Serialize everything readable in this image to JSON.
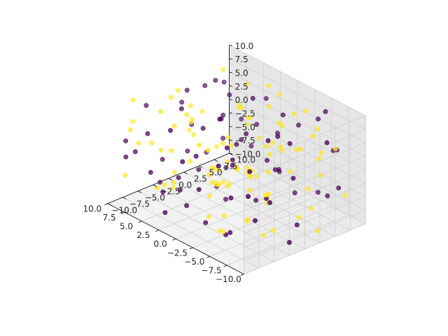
{
  "chart_data": {
    "type": "scatter",
    "projection": "3d",
    "title": "",
    "xlabel": "",
    "ylabel": "",
    "zlabel": "",
    "xlim": [
      -10,
      10
    ],
    "ylim": [
      -10,
      10
    ],
    "zlim": [
      -10,
      10
    ],
    "grid": true,
    "legend": "none",
    "tick_values": [
      -10,
      -7.5,
      -5,
      -2.5,
      0,
      2.5,
      5,
      7.5,
      10
    ],
    "x_ticks": [
      "−10.0",
      "−7.5",
      "−5.0",
      "−2.5",
      "0.0",
      "2.5",
      "5.0",
      "7.5",
      "10.0"
    ],
    "y_ticks": [
      "−10.0",
      "−7.5",
      "−5.0",
      "−2.5",
      "0.0",
      "2.5",
      "5.0",
      "7.5",
      "10.0"
    ],
    "z_ticks": [
      "−10.0",
      "−7.5",
      "−5.0",
      "−2.5",
      "0.0",
      "2.5",
      "5.0",
      "7.5",
      "10.0"
    ],
    "series": [
      {
        "color": "#440154",
        "points": [
          [
            -9.2,
            -8.4,
            3.1
          ],
          [
            -7.8,
            6.2,
            -4.5
          ],
          [
            -6.5,
            -2.1,
            8.7
          ],
          [
            -5.9,
            9.3,
            1.2
          ],
          [
            -4.4,
            -6.7,
            -7.9
          ],
          [
            -3.8,
            2.5,
            5.6
          ],
          [
            -2.6,
            -9.1,
            0.4
          ],
          [
            -1.9,
            4.8,
            -2.8
          ],
          [
            -0.7,
            -3.3,
            9.5
          ],
          [
            0.5,
            7.6,
            -6.1
          ],
          [
            1.3,
            -5.2,
            2.2
          ],
          [
            2.4,
            0.9,
            -9.3
          ],
          [
            3.1,
            -7.4,
            6.8
          ],
          [
            4.2,
            5.5,
            -1.6
          ],
          [
            5.0,
            -1.8,
            4.1
          ],
          [
            5.8,
            8.9,
            -5.4
          ],
          [
            6.7,
            -4.6,
            -8.2
          ],
          [
            7.5,
            3.2,
            7.3
          ],
          [
            8.4,
            -8.8,
            -0.9
          ],
          [
            9.3,
            1.4,
            3.9
          ],
          [
            -8.6,
            0.3,
            -6.6
          ],
          [
            -7.1,
            -5.8,
            5.1
          ],
          [
            -6.0,
            7.9,
            9.1
          ],
          [
            -4.9,
            -0.6,
            -3.7
          ],
          [
            -3.2,
            9.8,
            -8.5
          ],
          [
            -2.0,
            -2.9,
            2.6
          ],
          [
            -1.1,
            6.4,
            6.0
          ],
          [
            0.1,
            -8.1,
            -4.8
          ],
          [
            1.8,
            2.0,
            0.7
          ],
          [
            2.9,
            -6.3,
            -2.3
          ],
          [
            3.7,
            9.0,
            4.7
          ],
          [
            4.6,
            -3.9,
            8.2
          ],
          [
            5.4,
            4.3,
            -7.0
          ],
          [
            6.3,
            -9.6,
            1.8
          ],
          [
            7.2,
            0.0,
            -3.1
          ],
          [
            8.0,
            6.9,
            5.9
          ],
          [
            9.1,
            -2.4,
            -9.0
          ],
          [
            -9.7,
            4.0,
            7.6
          ],
          [
            -8.1,
            -3.6,
            -1.0
          ],
          [
            -6.8,
            1.7,
            0.2
          ],
          [
            -5.3,
            -8.9,
            6.4
          ],
          [
            -4.0,
            5.1,
            -5.9
          ],
          [
            -2.9,
            -4.3,
            -9.6
          ],
          [
            -1.5,
            8.5,
            3.4
          ],
          [
            -0.2,
            -0.9,
            -0.5
          ],
          [
            1.0,
            3.8,
            8.9
          ],
          [
            2.1,
            -9.4,
            -6.8
          ],
          [
            3.4,
            7.1,
            1.0
          ],
          [
            4.5,
            -1.2,
            -4.2
          ],
          [
            5.6,
            2.8,
            9.7
          ],
          [
            6.9,
            -6.9,
            3.5
          ],
          [
            7.8,
            9.5,
            -2.0
          ],
          [
            8.8,
            -5.0,
            6.6
          ],
          [
            9.6,
            5.8,
            -7.6
          ],
          [
            -9.0,
            -1.4,
            -8.8
          ],
          [
            -7.5,
            8.1,
            2.9
          ],
          [
            -5.6,
            -7.2,
            -0.1
          ],
          [
            -4.7,
            3.5,
            4.4
          ],
          [
            -3.5,
            -5.5,
            7.0
          ],
          [
            -2.3,
            0.6,
            -6.3
          ],
          [
            -0.9,
            -9.9,
            4.8
          ],
          [
            0.8,
            5.9,
            -3.4
          ],
          [
            2.6,
            -2.6,
            5.3
          ],
          [
            3.9,
            1.1,
            -8.0
          ],
          [
            5.2,
            -8.3,
            -1.9
          ],
          [
            6.1,
            4.6,
            2.1
          ],
          [
            7.0,
            -0.3,
            8.4
          ],
          [
            8.6,
            7.4,
            -5.1
          ],
          [
            9.4,
            -7.7,
            0.9
          ],
          [
            -8.9,
            6.8,
            -2.6
          ],
          [
            -6.3,
            -4.0,
            -5.3
          ],
          [
            -4.2,
            8.7,
            6.2
          ],
          [
            -1.7,
            -7.0,
            -7.3
          ],
          [
            0.3,
            1.9,
            3.7
          ],
          [
            2.2,
            9.2,
            -0.8
          ],
          [
            4.0,
            -4.8,
            -6.0
          ],
          [
            6.5,
            6.1,
            4.9
          ],
          [
            8.2,
            -3.0,
            -3.9
          ],
          [
            -3.0,
            3.0,
            -1.3
          ],
          [
            1.6,
            -1.0,
            6.9
          ]
        ]
      },
      {
        "color": "#fde725",
        "points": [
          [
            -9.5,
            2.9,
            5.0
          ],
          [
            -8.3,
            -7.6,
            -2.4
          ],
          [
            -7.2,
            5.3,
            7.9
          ],
          [
            -6.2,
            -1.0,
            -8.6
          ],
          [
            -5.1,
            8.2,
            0.8
          ],
          [
            -4.1,
            -4.5,
            3.3
          ],
          [
            -3.4,
            1.2,
            -6.4
          ],
          [
            -2.2,
            -8.6,
            8.1
          ],
          [
            -1.3,
            6.0,
            -0.3
          ],
          [
            -0.4,
            -2.7,
            4.5
          ],
          [
            0.7,
            9.6,
            -7.1
          ],
          [
            1.5,
            -6.0,
            1.5
          ],
          [
            2.7,
            3.4,
            6.3
          ],
          [
            3.5,
            -9.2,
            -3.2
          ],
          [
            4.4,
            0.5,
            -9.8
          ],
          [
            5.5,
            7.0,
            2.7
          ],
          [
            6.4,
            -3.6,
            9.0
          ],
          [
            7.3,
            4.9,
            -4.6
          ],
          [
            8.1,
            -8.0,
            5.5
          ],
          [
            9.0,
            2.3,
            -1.5
          ],
          [
            -9.1,
            -5.4,
            1.9
          ],
          [
            -7.9,
            9.0,
            -5.6
          ],
          [
            -6.6,
            -0.2,
            6.7
          ],
          [
            -5.5,
            -8.2,
            -3.0
          ],
          [
            -4.5,
            4.4,
            9.3
          ],
          [
            -3.6,
            -2.2,
            -7.7
          ],
          [
            -2.5,
            7.7,
            0.0
          ],
          [
            -1.6,
            -6.5,
            5.8
          ],
          [
            -0.5,
            2.6,
            -4.0
          ],
          [
            0.4,
            -4.1,
            -1.1
          ],
          [
            1.2,
            8.3,
            7.4
          ],
          [
            2.3,
            -0.7,
            -5.8
          ],
          [
            3.3,
            5.6,
            3.0
          ],
          [
            4.1,
            -7.9,
            9.9
          ],
          [
            5.1,
            1.6,
            -8.3
          ],
          [
            6.0,
            -5.7,
            0.5
          ],
          [
            6.8,
            9.4,
            5.2
          ],
          [
            7.7,
            -1.6,
            -6.7
          ],
          [
            8.7,
            4.1,
            1.3
          ],
          [
            9.5,
            -6.4,
            7.8
          ],
          [
            -8.7,
            3.6,
            -9.2
          ],
          [
            -7.4,
            -3.1,
            4.0
          ],
          [
            -6.4,
            6.6,
            -1.8
          ],
          [
            -5.2,
            -9.5,
            6.1
          ],
          [
            -4.3,
            0.2,
            -4.4
          ],
          [
            -3.3,
            8.8,
            2.4
          ],
          [
            -2.1,
            -5.1,
            -9.4
          ],
          [
            -1.0,
            4.2,
            8.5
          ],
          [
            0.0,
            -1.5,
            0.3
          ],
          [
            1.1,
            6.7,
            -2.9
          ],
          [
            2.0,
            -8.5,
            4.3
          ],
          [
            3.0,
            2.1,
            -7.4
          ],
          [
            4.3,
            -3.4,
            7.1
          ],
          [
            5.3,
            7.8,
            -0.6
          ],
          [
            6.2,
            -0.4,
            3.6
          ],
          [
            7.1,
            5.0,
            -8.9
          ],
          [
            8.3,
            -9.0,
            -4.1
          ],
          [
            9.2,
            0.7,
            6.5
          ],
          [
            -9.4,
            -6.1,
            -5.0
          ],
          [
            -8.0,
            7.3,
            3.8
          ],
          [
            -6.9,
            -2.5,
            -0.7
          ],
          [
            -5.8,
            1.0,
            9.6
          ],
          [
            -4.6,
            -7.3,
            -6.9
          ],
          [
            -3.7,
            5.7,
            1.6
          ],
          [
            -2.7,
            -0.8,
            -3.5
          ],
          [
            -1.4,
            9.7,
            5.4
          ],
          [
            -0.3,
            -4.9,
            -8.1
          ],
          [
            0.9,
            0.1,
            2.0
          ],
          [
            1.9,
            4.7,
            -5.5
          ],
          [
            2.8,
            -7.1,
            7.7
          ],
          [
            3.8,
            8.0,
            -2.2
          ],
          [
            4.9,
            -2.0,
            4.6
          ],
          [
            5.9,
            3.1,
            -9.5
          ],
          [
            6.6,
            -8.7,
            2.8
          ],
          [
            7.6,
            6.3,
            8.8
          ],
          [
            8.5,
            -4.4,
            -0.4
          ],
          [
            9.8,
            3.9,
            -3.6
          ],
          [
            -9.8,
            0.8,
            0.6
          ],
          [
            -8.4,
            -9.3,
            8.0
          ],
          [
            -7.0,
            2.4,
            -7.2
          ],
          [
            -5.7,
            -4.2,
            2.5
          ],
          [
            -4.8,
            6.9,
            -9.1
          ],
          [
            -3.9,
            -8.4,
            4.9
          ],
          [
            -2.8,
            3.9,
            6.8
          ],
          [
            -1.8,
            -3.5,
            -2.1
          ],
          [
            -0.6,
            5.2,
            1.1
          ],
          [
            0.6,
            -9.7,
            -0.2
          ],
          [
            1.7,
            7.2,
            9.2
          ],
          [
            2.5,
            -0.1,
            -6.2
          ],
          [
            3.6,
            4.5,
            5.7
          ],
          [
            4.7,
            -6.6,
            -4.7
          ],
          [
            5.7,
            8.6,
            0.1
          ],
          [
            6.8,
            -2.8,
            -8.4
          ],
          [
            7.9,
            1.3,
            4.2
          ],
          [
            8.9,
            -7.5,
            3.2
          ],
          [
            -2.4,
            2.2,
            3.0
          ],
          [
            0.2,
            -2.0,
            -3.3
          ],
          [
            2.6,
            1.5,
            1.7
          ],
          [
            -1.2,
            0.4,
            -0.9
          ],
          [
            1.4,
            3.3,
            -4.9
          ]
        ]
      }
    ]
  }
}
